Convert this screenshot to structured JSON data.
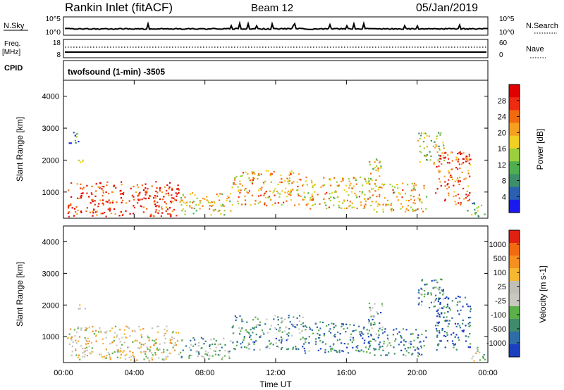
{
  "header": {
    "station": "Rankin Inlet (fitACF)",
    "beam": "Beam 12",
    "date": "05/Jan/2019"
  },
  "top_panels": {
    "nsky": {
      "left_label": "N.Sky",
      "left_ticks": [
        "10^5",
        "10^0"
      ],
      "right_label": "N.Search",
      "right_ticks": [
        "10^5",
        "10^0"
      ]
    },
    "freq": {
      "left_label": "Freq.",
      "left_unit": "[MHz]",
      "left_ticks": [
        "18",
        "8"
      ],
      "right_label": "Nave",
      "right_ticks": [
        "60",
        "0"
      ]
    },
    "cpid": {
      "label": "CPID",
      "text": "twofsound (1-min) -3505"
    }
  },
  "x_axis": {
    "label": "Time UT",
    "ticks": [
      "00:00",
      "04:00",
      "08:00",
      "12:00",
      "16:00",
      "20:00",
      "00:00"
    ]
  },
  "chart_data": [
    {
      "type": "heatmap",
      "panel": "power",
      "xlabel": "Time UT",
      "ylabel": "Slant Range [km]",
      "yticks": [
        1000,
        2000,
        3000,
        4000
      ],
      "ylim": [
        180,
        4500
      ],
      "xlim_hours": [
        0,
        24
      ],
      "colorbar": {
        "label": "Power [dB]",
        "ticks": [
          "28",
          "24",
          "20",
          "16",
          "12",
          "8",
          "4"
        ],
        "colors": [
          "#1a1aee",
          "#2b5fb0",
          "#3c8f6a",
          "#4fae4f",
          "#9bcf3c",
          "#f0d020",
          "#f5a020",
          "#f26a10",
          "#ee2b10",
          "#e00000"
        ]
      },
      "regions": [
        {
          "t": [
            0.2,
            6.5
          ],
          "r": [
            250,
            1350
          ],
          "level": 0.85
        },
        {
          "t": [
            0.8,
            1.2
          ],
          "r": [
            1750,
            2050
          ],
          "level": 0.7
        },
        {
          "t": [
            0.3,
            1.0
          ],
          "r": [
            2550,
            2950
          ],
          "level": 0.25
        },
        {
          "t": [
            6.5,
            9.5
          ],
          "r": [
            300,
            1000
          ],
          "level": 0.55
        },
        {
          "t": [
            9.5,
            13.5
          ],
          "r": [
            600,
            1700
          ],
          "level": 0.65
        },
        {
          "t": [
            13.5,
            17.5
          ],
          "r": [
            500,
            1500
          ],
          "level": 0.6
        },
        {
          "t": [
            17.2,
            18.0
          ],
          "r": [
            1200,
            2100
          ],
          "level": 0.55
        },
        {
          "t": [
            17.5,
            20.5
          ],
          "r": [
            400,
            1300
          ],
          "level": 0.6
        },
        {
          "t": [
            20.0,
            21.5
          ],
          "r": [
            1900,
            2900
          ],
          "level": 0.45
        },
        {
          "t": [
            21.0,
            23.0
          ],
          "r": [
            600,
            2300
          ],
          "level": 0.8
        },
        {
          "t": [
            22.8,
            23.8
          ],
          "r": [
            250,
            700
          ],
          "level": 0.4
        }
      ]
    },
    {
      "type": "heatmap",
      "panel": "velocity",
      "xlabel": "Time UT",
      "ylabel": "Slant Range [km]",
      "yticks": [
        1000,
        2000,
        3000,
        4000
      ],
      "ylim": [
        180,
        4500
      ],
      "xlim_hours": [
        0,
        24
      ],
      "colorbar": {
        "label": "Velocity [m s-1]",
        "ticks": [
          "1000",
          "500",
          "100",
          "25",
          "-25",
          "-100",
          "-500",
          "-1000"
        ],
        "colors": [
          "#1b3fbf",
          "#2e6da8",
          "#3e8c6c",
          "#5bb04a",
          "#c8c8c0",
          "#c0c0b8",
          "#f5b830",
          "#f59020",
          "#f26a10",
          "#e02010"
        ]
      },
      "regions": [
        {
          "t": [
            0.2,
            6.5
          ],
          "r": [
            250,
            1350
          ],
          "level": 0.55
        },
        {
          "t": [
            0.8,
            1.2
          ],
          "r": [
            1750,
            2050
          ],
          "level": 0.55
        },
        {
          "t": [
            6.5,
            9.5
          ],
          "r": [
            300,
            1000
          ],
          "level": 0.35
        },
        {
          "t": [
            9.5,
            13.5
          ],
          "r": [
            600,
            1700
          ],
          "level": 0.3
        },
        {
          "t": [
            13.5,
            17.5
          ],
          "r": [
            500,
            1500
          ],
          "level": 0.2
        },
        {
          "t": [
            17.2,
            18.0
          ],
          "r": [
            1200,
            2100
          ],
          "level": 0.3
        },
        {
          "t": [
            17.5,
            20.5
          ],
          "r": [
            400,
            1300
          ],
          "level": 0.2
        },
        {
          "t": [
            20.0,
            21.5
          ],
          "r": [
            1900,
            2900
          ],
          "level": 0.25
        },
        {
          "t": [
            21.0,
            23.0
          ],
          "r": [
            600,
            2300
          ],
          "level": 0.12
        },
        {
          "t": [
            22.8,
            23.8
          ],
          "r": [
            250,
            700
          ],
          "level": 0.45
        }
      ]
    }
  ]
}
